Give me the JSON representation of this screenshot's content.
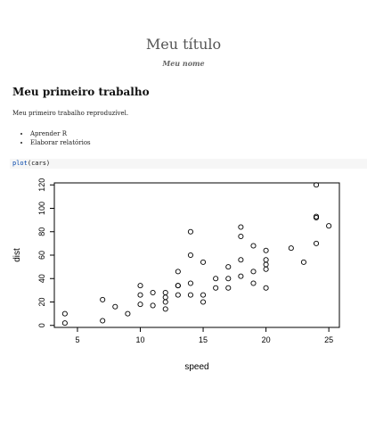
{
  "document": {
    "title": "Meu título",
    "author": "Meu nome",
    "section_heading": "Meu primeiro trabalho",
    "paragraph": "Meu primeiro trabalho reproduzível.",
    "bullets": [
      "Aprender R",
      "Elaborar relatórios"
    ],
    "code": {
      "function": "plot",
      "args": "(cars)"
    }
  },
  "chart_data": {
    "type": "scatter",
    "title": "",
    "xlabel": "speed",
    "ylabel": "dist",
    "xlim": [
      3.16,
      25.84
    ],
    "ylim": [
      -1.72,
      121.72
    ],
    "xticks": [
      5,
      10,
      15,
      20,
      25
    ],
    "yticks": [
      0,
      20,
      40,
      60,
      80,
      100,
      120
    ],
    "grid": false,
    "points": [
      [
        4,
        2
      ],
      [
        4,
        10
      ],
      [
        7,
        4
      ],
      [
        7,
        22
      ],
      [
        8,
        16
      ],
      [
        9,
        10
      ],
      [
        10,
        18
      ],
      [
        10,
        26
      ],
      [
        10,
        34
      ],
      [
        11,
        17
      ],
      [
        11,
        28
      ],
      [
        12,
        14
      ],
      [
        12,
        20
      ],
      [
        12,
        24
      ],
      [
        12,
        28
      ],
      [
        13,
        26
      ],
      [
        13,
        34
      ],
      [
        13,
        34
      ],
      [
        13,
        46
      ],
      [
        14,
        26
      ],
      [
        14,
        36
      ],
      [
        14,
        60
      ],
      [
        14,
        80
      ],
      [
        15,
        20
      ],
      [
        15,
        26
      ],
      [
        15,
        54
      ],
      [
        16,
        32
      ],
      [
        16,
        40
      ],
      [
        17,
        32
      ],
      [
        17,
        40
      ],
      [
        17,
        50
      ],
      [
        18,
        42
      ],
      [
        18,
        56
      ],
      [
        18,
        76
      ],
      [
        18,
        84
      ],
      [
        19,
        36
      ],
      [
        19,
        46
      ],
      [
        19,
        68
      ],
      [
        20,
        32
      ],
      [
        20,
        48
      ],
      [
        20,
        52
      ],
      [
        20,
        56
      ],
      [
        20,
        64
      ],
      [
        22,
        66
      ],
      [
        23,
        54
      ],
      [
        24,
        70
      ],
      [
        24,
        92
      ],
      [
        24,
        93
      ],
      [
        24,
        120
      ],
      [
        25,
        85
      ]
    ]
  }
}
